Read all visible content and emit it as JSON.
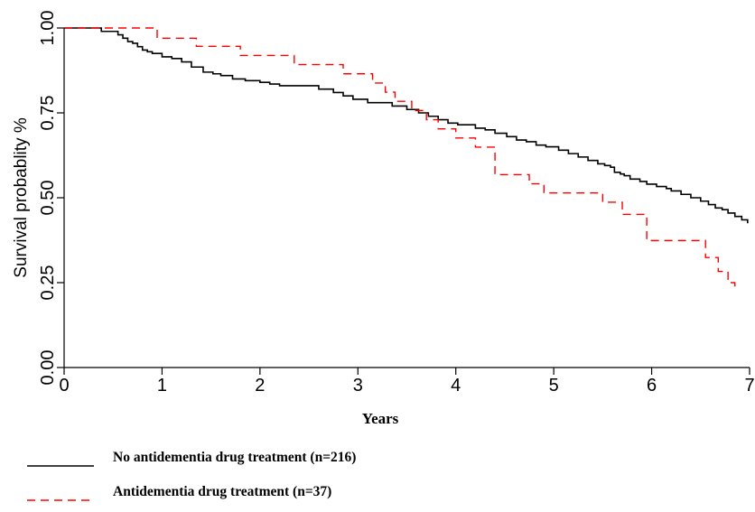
{
  "chart_data": {
    "type": "line",
    "xlabel": "Years",
    "ylabel": "Survival probablity %",
    "xlim": [
      0,
      7
    ],
    "ylim": [
      0,
      1
    ],
    "x_ticks": [
      "0",
      "1",
      "2",
      "3",
      "4",
      "5",
      "6",
      "7"
    ],
    "y_ticks": [
      "0.00",
      "0.25",
      "0.50",
      "0.75",
      "1.00"
    ],
    "x_tick_values": [
      0,
      1,
      2,
      3,
      4,
      5,
      6,
      7
    ],
    "y_tick_values": [
      0,
      0.25,
      0.5,
      0.75,
      1.0
    ],
    "grid": false,
    "legend_position": "bottom",
    "series": [
      {
        "name": "No antidementia drug treatment (n=216)",
        "color": "#000000",
        "dash": "solid",
        "x": [
          0,
          0.38,
          0.55,
          0.6,
          0.65,
          0.7,
          0.75,
          0.8,
          0.85,
          0.9,
          1.0,
          1.1,
          1.2,
          1.3,
          1.42,
          1.52,
          1.6,
          1.72,
          1.85,
          2.0,
          2.1,
          2.2,
          2.6,
          2.75,
          2.85,
          2.95,
          3.1,
          3.35,
          3.5,
          3.62,
          3.72,
          3.82,
          3.92,
          4.02,
          4.2,
          4.3,
          4.4,
          4.52,
          4.62,
          4.72,
          4.82,
          4.92,
          5.05,
          5.15,
          5.25,
          5.35,
          5.45,
          5.52,
          5.58,
          5.62,
          5.68,
          5.72,
          5.78,
          5.88,
          5.95,
          6.05,
          6.15,
          6.2,
          6.3,
          6.4,
          6.5,
          6.58,
          6.65,
          6.72,
          6.78,
          6.85,
          6.92,
          6.98
        ],
        "y": [
          1.0,
          0.99,
          0.98,
          0.97,
          0.96,
          0.955,
          0.945,
          0.935,
          0.93,
          0.925,
          0.915,
          0.91,
          0.9,
          0.885,
          0.87,
          0.865,
          0.86,
          0.85,
          0.845,
          0.84,
          0.835,
          0.83,
          0.82,
          0.81,
          0.8,
          0.79,
          0.78,
          0.77,
          0.76,
          0.75,
          0.74,
          0.73,
          0.72,
          0.715,
          0.705,
          0.7,
          0.69,
          0.68,
          0.67,
          0.665,
          0.655,
          0.65,
          0.64,
          0.63,
          0.62,
          0.61,
          0.6,
          0.595,
          0.59,
          0.575,
          0.57,
          0.565,
          0.555,
          0.548,
          0.54,
          0.533,
          0.527,
          0.52,
          0.51,
          0.5,
          0.49,
          0.48,
          0.47,
          0.465,
          0.455,
          0.445,
          0.435,
          0.425
        ]
      },
      {
        "name": "Antidementia drug treatment (n=37)",
        "color": "#ff0000",
        "dash": "dashed",
        "x": [
          0,
          0.95,
          1.35,
          1.8,
          2.35,
          2.85,
          3.15,
          3.28,
          3.38,
          3.55,
          3.7,
          3.82,
          4.0,
          4.2,
          4.4,
          4.75,
          4.9,
          5.5,
          5.7,
          5.95,
          6.55,
          6.68,
          6.78,
          6.85
        ],
        "y": [
          1.0,
          0.97,
          0.946,
          0.919,
          0.892,
          0.865,
          0.838,
          0.811,
          0.784,
          0.757,
          0.73,
          0.703,
          0.676,
          0.649,
          0.568,
          0.541,
          0.514,
          0.487,
          0.451,
          0.374,
          0.324,
          0.283,
          0.25,
          0.23
        ]
      }
    ]
  }
}
